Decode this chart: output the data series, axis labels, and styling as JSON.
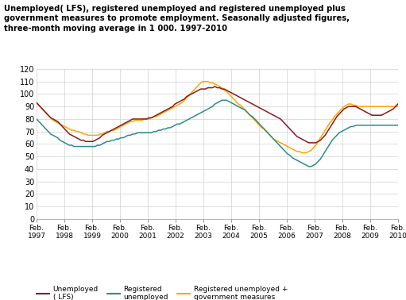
{
  "title": "Unemployed( LFS), registered unemployed and registered unemployed plus\ngovernment measures to promote employment. Seasonally adjusted figures,\nthree-month moving average in 1 000. 1997-2010",
  "ylim": [
    0,
    120
  ],
  "yticks": [
    0,
    10,
    20,
    30,
    40,
    50,
    60,
    70,
    80,
    90,
    100,
    110,
    120
  ],
  "x_labels": [
    "Feb.\n1997",
    "Feb.\n1998",
    "Feb.\n1999",
    "Feb.\n2000",
    "Feb.\n2001",
    "Feb.\n2002",
    "Feb.\n2003",
    "Feb.\n2004",
    "Feb.\n2005",
    "Feb.\n2006",
    "Feb.\n2007",
    "Feb.\n2008",
    "Feb.\n2009",
    "Feb.\n2010"
  ],
  "color_lfs": "#8B1A1A",
  "color_reg": "#2E8B8B",
  "color_gov": "#FFA500",
  "legend_lfs": "Unemployed\n( LFS)",
  "legend_reg": "Registered\nunemployed",
  "legend_gov": "Registered unemployed +\ngovernment measures",
  "lfs": [
    93,
    91,
    89,
    87,
    85,
    83,
    81,
    80,
    79,
    78,
    76,
    74,
    72,
    70,
    68,
    67,
    66,
    65,
    64,
    63,
    63,
    62,
    62,
    62,
    62,
    63,
    64,
    65,
    67,
    68,
    69,
    70,
    71,
    72,
    73,
    74,
    75,
    76,
    77,
    78,
    79,
    80,
    80,
    80,
    80,
    80,
    80,
    80,
    81,
    81,
    82,
    83,
    84,
    85,
    86,
    87,
    88,
    89,
    90,
    92,
    93,
    94,
    95,
    96,
    98,
    99,
    100,
    101,
    102,
    103,
    104,
    104,
    104,
    105,
    105,
    105,
    106,
    105,
    105,
    104,
    104,
    103,
    102,
    101,
    100,
    99,
    98,
    97,
    96,
    95,
    94,
    93,
    92,
    91,
    90,
    89,
    88,
    87,
    86,
    85,
    84,
    83,
    82,
    81,
    80,
    78,
    76,
    74,
    72,
    70,
    68,
    66,
    65,
    64,
    63,
    62,
    61,
    61,
    61,
    61,
    62,
    63,
    65,
    67,
    70,
    73,
    76,
    79,
    82,
    84,
    86,
    88,
    89,
    90,
    90,
    90,
    90,
    89,
    88,
    87,
    86,
    85,
    84,
    83,
    83,
    83,
    83,
    83,
    84,
    85,
    86,
    87,
    88,
    90,
    92
  ],
  "reg": [
    80,
    78,
    76,
    74,
    72,
    70,
    68,
    67,
    66,
    65,
    63,
    62,
    61,
    60,
    59,
    59,
    58,
    58,
    58,
    58,
    58,
    58,
    58,
    58,
    58,
    58,
    59,
    59,
    60,
    61,
    62,
    62,
    63,
    63,
    64,
    64,
    65,
    65,
    66,
    67,
    67,
    68,
    68,
    69,
    69,
    69,
    69,
    69,
    69,
    69,
    70,
    70,
    71,
    71,
    72,
    72,
    73,
    73,
    74,
    75,
    76,
    76,
    77,
    78,
    79,
    80,
    81,
    82,
    83,
    84,
    85,
    86,
    87,
    88,
    89,
    90,
    92,
    93,
    94,
    95,
    95,
    95,
    94,
    93,
    92,
    91,
    90,
    89,
    88,
    87,
    85,
    83,
    82,
    80,
    78,
    76,
    74,
    72,
    70,
    68,
    66,
    64,
    62,
    60,
    58,
    56,
    54,
    52,
    51,
    49,
    48,
    47,
    46,
    45,
    44,
    43,
    42,
    42,
    43,
    44,
    46,
    48,
    51,
    54,
    57,
    60,
    63,
    65,
    67,
    69,
    70,
    71,
    72,
    73,
    74,
    74,
    75,
    75,
    75,
    75,
    75,
    75,
    75,
    75,
    75,
    75,
    75,
    75,
    75,
    75,
    75,
    75,
    75,
    75,
    75
  ],
  "gov": [
    93,
    91,
    89,
    87,
    85,
    83,
    81,
    79,
    78,
    77,
    76,
    75,
    74,
    73,
    72,
    71,
    71,
    70,
    70,
    69,
    68,
    68,
    67,
    67,
    67,
    67,
    67,
    68,
    68,
    69,
    70,
    70,
    71,
    71,
    72,
    73,
    74,
    75,
    76,
    77,
    78,
    78,
    79,
    79,
    79,
    79,
    80,
    80,
    80,
    81,
    82,
    82,
    83,
    84,
    85,
    86,
    87,
    88,
    89,
    90,
    91,
    92,
    93,
    95,
    97,
    99,
    101,
    103,
    105,
    107,
    109,
    110,
    110,
    110,
    109,
    109,
    108,
    107,
    106,
    105,
    103,
    102,
    100,
    98,
    96,
    94,
    92,
    91,
    89,
    87,
    85,
    83,
    81,
    79,
    77,
    75,
    73,
    72,
    70,
    68,
    66,
    64,
    63,
    62,
    61,
    60,
    59,
    58,
    57,
    56,
    55,
    54,
    54,
    53,
    53,
    53,
    54,
    55,
    57,
    59,
    62,
    65,
    68,
    71,
    74,
    77,
    79,
    82,
    84,
    86,
    88,
    90,
    91,
    92,
    92,
    91,
    91,
    90,
    90,
    90,
    90,
    90,
    90,
    90,
    90,
    90,
    90,
    90,
    90,
    90,
    90,
    90,
    90,
    90,
    90
  ]
}
